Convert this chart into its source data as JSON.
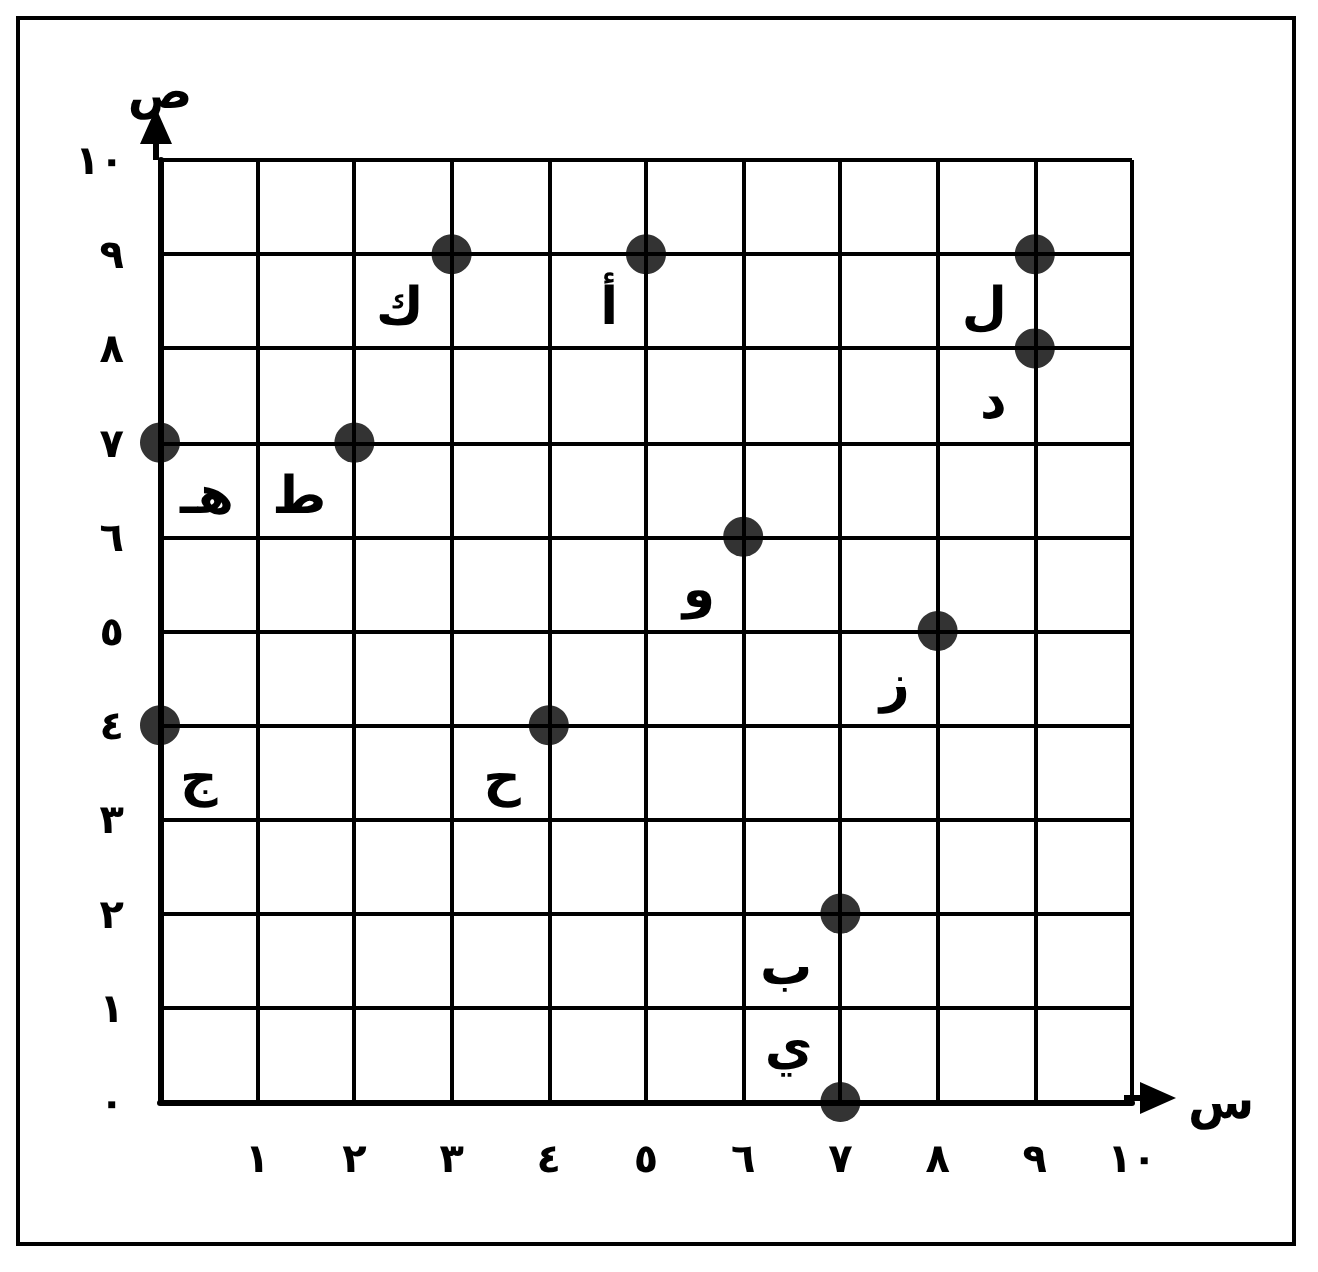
{
  "chart_data": {
    "type": "scatter",
    "xlabel": "س",
    "ylabel": "ص",
    "color": "#000000",
    "marker": "circle",
    "grid": true,
    "x": [
      5,
      7,
      0,
      9,
      0,
      6,
      8,
      4,
      2,
      7,
      3,
      9
    ],
    "values": [
      9,
      2,
      4,
      8,
      7,
      6,
      5,
      4,
      7,
      0,
      9,
      9
    ],
    "xlim": [
      0,
      10
    ],
    "ylim": [
      0,
      10
    ],
    "xticks": [
      {
        "value": 0,
        "label": null
      },
      {
        "value": 1,
        "label": "١"
      },
      {
        "value": 2,
        "label": "٢"
      },
      {
        "value": 3,
        "label": "٣"
      },
      {
        "value": 4,
        "label": "٤"
      },
      {
        "value": 5,
        "label": "٥"
      },
      {
        "value": 6,
        "label": "٦"
      },
      {
        "value": 7,
        "label": "٧"
      },
      {
        "value": 8,
        "label": "٨"
      },
      {
        "value": 9,
        "label": "٩"
      },
      {
        "value": 10,
        "label": "١٠"
      }
    ],
    "yticks": [
      {
        "value": 0,
        "label": "٠"
      },
      {
        "value": 1,
        "label": "١"
      },
      {
        "value": 2,
        "label": "٢"
      },
      {
        "value": 3,
        "label": "٣"
      },
      {
        "value": 4,
        "label": "٤"
      },
      {
        "value": 5,
        "label": "٥"
      },
      {
        "value": 6,
        "label": "٦"
      },
      {
        "value": 7,
        "label": "٧"
      },
      {
        "value": 8,
        "label": "٨"
      },
      {
        "value": 9,
        "label": "٩"
      },
      {
        "value": 10,
        "label": "١٠"
      }
    ],
    "annotations": [
      {
        "text": "أ",
        "x": 5,
        "y": 9
      },
      {
        "text": "ب",
        "x": 7,
        "y": 2
      },
      {
        "text": "ج",
        "x": 0,
        "y": 4
      },
      {
        "text": "د",
        "x": 9,
        "y": 8
      },
      {
        "text": "هـ",
        "x": 0,
        "y": 7
      },
      {
        "text": "و",
        "x": 6,
        "y": 6
      },
      {
        "text": "ز",
        "x": 8,
        "y": 5
      },
      {
        "text": "ح",
        "x": 4,
        "y": 4
      },
      {
        "text": "ط",
        "x": 2,
        "y": 7
      },
      {
        "text": "ي",
        "x": 7,
        "y": 0
      },
      {
        "text": "ك",
        "x": 3,
        "y": 9
      },
      {
        "text": "ل",
        "x": 9,
        "y": 9
      }
    ]
  }
}
